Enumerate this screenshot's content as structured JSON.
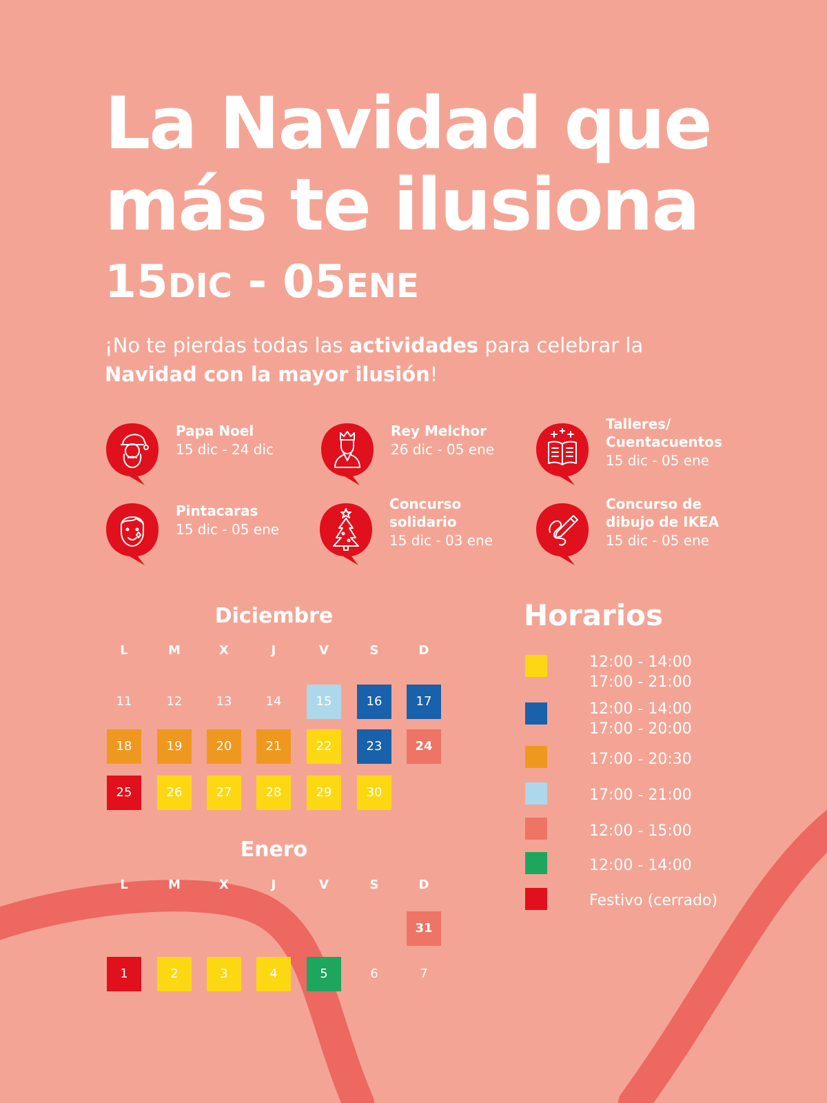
{
  "title": {
    "line1": "La Navidad que",
    "line2": "más te ilusiona"
  },
  "dates": {
    "start_day": "15",
    "start_month": "DIC",
    "separator": " - ",
    "end_day": "05",
    "end_month": "ENE"
  },
  "intro": {
    "p1": "¡No te pierdas todas las ",
    "b1": "actividades",
    "p2": " para celebrar la ",
    "b2": "Navidad con la mayor ilusión",
    "p3": "!"
  },
  "activities": [
    {
      "name": "Papa Noel",
      "date": "15 dic - 24 dic",
      "icon": "santa-claus-icon"
    },
    {
      "name": "Rey Melchor",
      "date": "26 dic - 05 ene",
      "icon": "king-melchor-icon"
    },
    {
      "name": "Talleres/ Cuentacuentos",
      "date": "15 dic - 05 ene",
      "icon": "open-book-icon"
    },
    {
      "name": "Pintacaras",
      "date": "15 dic - 05 ene",
      "icon": "face-paint-icon"
    },
    {
      "name": "Concurso solidario",
      "date": "15 dic - 03 ene",
      "icon": "christmas-tree-icon"
    },
    {
      "name": "Concurso de dibujo de IKEA",
      "date": "15 dic - 05 ene",
      "icon": "pencil-drawing-icon"
    }
  ],
  "weekdays": [
    "L",
    "M",
    "X",
    "J",
    "V",
    "S",
    "D"
  ],
  "calendar": {
    "december": {
      "label": "Diciembre",
      "weeks": [
        [
          {
            "d": "11",
            "s": ""
          },
          {
            "d": "12",
            "s": ""
          },
          {
            "d": "13",
            "s": ""
          },
          {
            "d": "14",
            "s": ""
          },
          {
            "d": "15",
            "s": "lightblue"
          },
          {
            "d": "16",
            "s": "blue"
          },
          {
            "d": "17",
            "s": "blue"
          }
        ],
        [
          {
            "d": "18",
            "s": "orange"
          },
          {
            "d": "19",
            "s": "orange"
          },
          {
            "d": "20",
            "s": "orange"
          },
          {
            "d": "21",
            "s": "orange"
          },
          {
            "d": "22",
            "s": "yellow"
          },
          {
            "d": "23",
            "s": "blue"
          },
          {
            "d": "24",
            "s": "salmon",
            "bold": true
          }
        ],
        [
          {
            "d": "25",
            "s": "red"
          },
          {
            "d": "26",
            "s": "yellow"
          },
          {
            "d": "27",
            "s": "yellow"
          },
          {
            "d": "28",
            "s": "yellow"
          },
          {
            "d": "29",
            "s": "yellow"
          },
          {
            "d": "30",
            "s": "yellow"
          }
        ]
      ]
    },
    "january": {
      "label": "Enero",
      "weeks": [
        [
          null,
          null,
          null,
          null,
          null,
          null,
          {
            "d": "31",
            "s": "salmon",
            "bold": true
          }
        ],
        [
          {
            "d": "1",
            "s": "red"
          },
          {
            "d": "2",
            "s": "yellow"
          },
          {
            "d": "3",
            "s": "yellow"
          },
          {
            "d": "4",
            "s": "yellow"
          },
          {
            "d": "5",
            "s": "green"
          },
          {
            "d": "6",
            "s": ""
          },
          {
            "d": "7",
            "s": ""
          }
        ]
      ]
    }
  },
  "schedule": {
    "title": "Horarios",
    "items": [
      {
        "key": "yellow",
        "lines": [
          "12:00 - 14:00",
          "17:00 - 21:00"
        ]
      },
      {
        "key": "blue",
        "lines": [
          "12:00 - 14:00",
          "17:00 - 20:00"
        ]
      },
      {
        "key": "orange",
        "lines": [
          "17:00 - 20:30"
        ]
      },
      {
        "key": "lightblue",
        "lines": [
          "17:00 - 21:00"
        ]
      },
      {
        "key": "salmon",
        "lines": [
          "12:00 - 15:00"
        ]
      },
      {
        "key": "green",
        "lines": [
          "12:00 - 14:00"
        ]
      },
      {
        "key": "red",
        "lines": [
          "Festivo (cerrado)"
        ]
      }
    ]
  },
  "colors": {
    "background": "#f4a495",
    "ribbon": "#ec6861",
    "accent_red": "#e0101c",
    "yellow": "#fcd813",
    "blue": "#1961aa",
    "orange": "#ef981f",
    "lightblue": "#add7ea",
    "salmon": "#ee7466",
    "green": "#1ea55e",
    "red": "#e0101c"
  }
}
